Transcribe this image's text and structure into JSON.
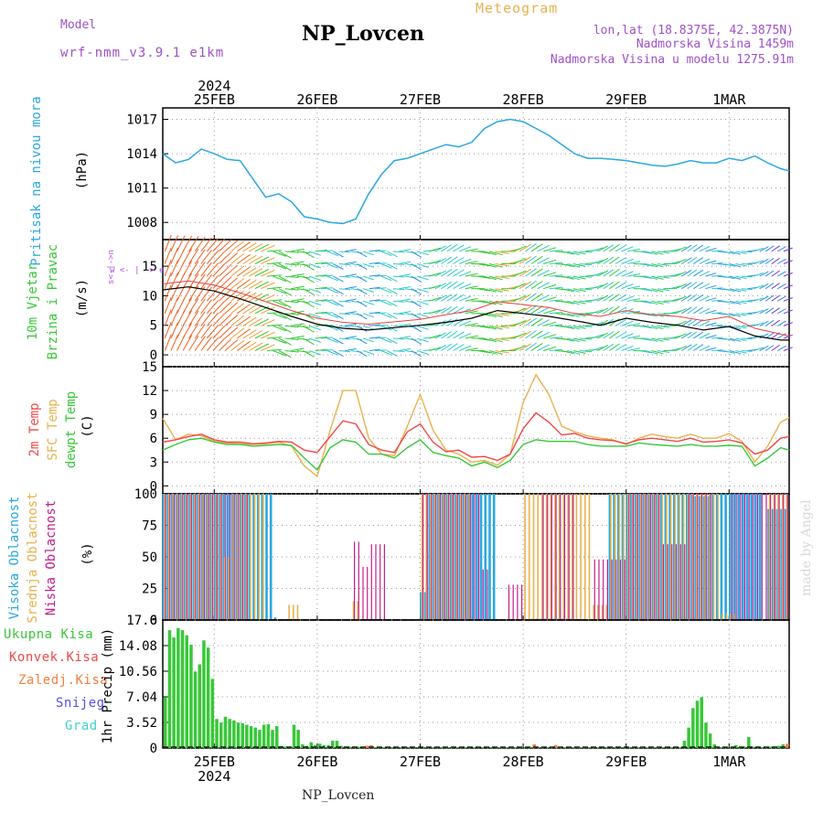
{
  "header": {
    "model_label": "Model",
    "model_name": "wrf-nmm_v3.9.1 e1km",
    "station": "NP_Lovcen",
    "product": "Meteogram",
    "coords": "lon,lat (18.8375E, 42.3875N)",
    "elevation": "Nadmorska Visina 1459m",
    "model_elevation": "Nadmorska Visina u modelu 1275.91m",
    "footer_station": "NP_Lovcen",
    "watermark": "made by Angel"
  },
  "time_axis": {
    "ticks": [
      {
        "label": "25FEB",
        "hour": 12
      },
      {
        "label": "26FEB",
        "hour": 36
      },
      {
        "label": "27FEB",
        "hour": 60
      },
      {
        "label": "28FEB",
        "hour": 84
      },
      {
        "label": "29FEB",
        "hour": 108
      },
      {
        "label": "1MAR",
        "hour": 132
      }
    ],
    "year": "2024",
    "hours_range": [
      0,
      146
    ]
  },
  "colors": {
    "pressure": "#2aa8e0",
    "temp2m": "#f04848",
    "sfc_temp": "#e8b24e",
    "dewpoint": "#38c838",
    "high_cloud": "#2aa8e0",
    "mid_cloud": "#e8b24e",
    "low_cloud": "#c0208c",
    "total_precip": "#38c838",
    "conv_precip": "#f04848",
    "frozen_precip": "#f08040",
    "snow": "#5050e0",
    "hail": "#40d0d0",
    "wind_label": "#38c838",
    "wind_axis_label": "#b050e0"
  },
  "chart_data": [
    {
      "type": "line",
      "panel": "pressure",
      "ylabel_main": "Pritisak na nivou mora",
      "unit": "(hPa)",
      "ylim": [
        1006.5,
        1018
      ],
      "yticks": [
        1008,
        1011,
        1014,
        1017
      ],
      "grid": true,
      "x": [
        0,
        3,
        6,
        9,
        12,
        15,
        18,
        21,
        24,
        27,
        30,
        33,
        36,
        39,
        42,
        45,
        48,
        51,
        54,
        57,
        60,
        63,
        66,
        69,
        72,
        75,
        78,
        81,
        84,
        87,
        90,
        93,
        96,
        99,
        102,
        105,
        108,
        111,
        114,
        117,
        120,
        123,
        126,
        129,
        132,
        135,
        138,
        141,
        144,
        146
      ],
      "series": [
        {
          "name": "Pritisak na nivou mora",
          "values": [
            1014,
            1013.2,
            1013.5,
            1014.4,
            1014,
            1013.5,
            1013.4,
            1011.8,
            1010.2,
            1010.5,
            1009.8,
            1008.5,
            1008.3,
            1008,
            1007.9,
            1008.3,
            1010.5,
            1012.2,
            1013.4,
            1013.6,
            1014,
            1014.4,
            1014.8,
            1014.6,
            1015,
            1016.2,
            1016.8,
            1017,
            1016.8,
            1016.2,
            1015.6,
            1014.8,
            1014,
            1013.6,
            1013.6,
            1013.5,
            1013.4,
            1013.2,
            1013,
            1012.9,
            1013.1,
            1013.4,
            1013.2,
            1013.2,
            1013.6,
            1013.4,
            1013.8,
            1013.2,
            1012.7,
            1012.5
          ]
        }
      ]
    },
    {
      "type": "line",
      "panel": "wind",
      "ylabel_main": "10m Vjetar",
      "ylabel_sub": "Brzina i Pravac",
      "unit": "(m/s)",
      "direction_legend": "w <- | -> e",
      "direction_legend_vertical": "s<-|->n",
      "ylim": [
        -2,
        19.5
      ],
      "yticks": [
        0,
        5,
        10,
        15
      ],
      "grid": true,
      "x": [
        0,
        6,
        12,
        18,
        24,
        30,
        36,
        42,
        48,
        54,
        60,
        66,
        72,
        78,
        84,
        90,
        96,
        102,
        108,
        114,
        120,
        126,
        132,
        138,
        144,
        146
      ],
      "series": [
        {
          "name": "Brzina",
          "values": [
            11,
            11.5,
            10.8,
            9.5,
            8,
            6.5,
            5.2,
            4.5,
            4.2,
            4.6,
            5,
            5.5,
            6.2,
            7.5,
            7,
            6.5,
            5.8,
            5,
            6.2,
            5.5,
            5,
            4.2,
            4.8,
            3.2,
            2.5,
            2.5
          ]
        },
        {
          "name": "Udar",
          "values": [
            12,
            12.5,
            11.8,
            10.5,
            9,
            7.5,
            6.2,
            5.5,
            5.2,
            5.6,
            6,
            6.8,
            7.5,
            9,
            8.5,
            8,
            7,
            6.5,
            7.5,
            6.8,
            6.5,
            5.8,
            6.5,
            4.5,
            3.5,
            3.2
          ]
        }
      ]
    },
    {
      "type": "line",
      "panel": "temperature",
      "ylabel_lines": [
        "2m Temp",
        "SFC Temp",
        "dewpt Temp"
      ],
      "unit": "(C)",
      "ylim": [
        -1,
        15
      ],
      "yticks": [
        0,
        3,
        6,
        9,
        12,
        15
      ],
      "grid": true,
      "x": [
        0,
        3,
        6,
        9,
        12,
        15,
        18,
        21,
        24,
        27,
        30,
        33,
        36,
        39,
        42,
        45,
        48,
        51,
        54,
        57,
        60,
        63,
        66,
        69,
        72,
        75,
        78,
        81,
        84,
        87,
        90,
        93,
        96,
        99,
        102,
        105,
        108,
        111,
        114,
        117,
        120,
        123,
        126,
        129,
        132,
        135,
        138,
        141,
        144,
        146
      ],
      "series": [
        {
          "name": "2m Temp",
          "values": [
            5.5,
            5.8,
            6.2,
            6.5,
            5.8,
            5.5,
            5.5,
            5.3,
            5.4,
            5.6,
            5.5,
            4.5,
            4.2,
            6.2,
            8.2,
            7.8,
            5.2,
            4.5,
            4.2,
            6.8,
            7.8,
            5.5,
            4.3,
            4.5,
            3.6,
            3.7,
            3.2,
            4.0,
            7.2,
            9.2,
            8.0,
            6.4,
            6.6,
            6.0,
            5.8,
            5.7,
            5.3,
            5.8,
            6.0,
            5.8,
            5.6,
            6.0,
            5.5,
            5.6,
            5.8,
            5.4,
            4.0,
            4.5,
            6.0,
            6.2
          ]
        },
        {
          "name": "SFC Temp",
          "values": [
            8.5,
            5.8,
            6.5,
            6.3,
            5.6,
            5.4,
            5.3,
            5.2,
            5.3,
            5.5,
            5.0,
            2.5,
            1.2,
            7.0,
            12.0,
            12.0,
            6.0,
            4.0,
            3.8,
            7.5,
            11.5,
            7.0,
            4.5,
            4.0,
            3.0,
            3.2,
            2.6,
            4.0,
            10.5,
            14.0,
            11.5,
            7.5,
            6.8,
            6.3,
            6.0,
            5.8,
            5.2,
            6.0,
            6.5,
            6.2,
            6.0,
            6.5,
            6.0,
            6.0,
            6.6,
            5.6,
            3.0,
            5.0,
            8.0,
            8.6
          ]
        },
        {
          "name": "dewpt Temp",
          "values": [
            4.5,
            5.2,
            5.8,
            6.0,
            5.5,
            5.2,
            5.2,
            5.0,
            5.1,
            5.2,
            5.1,
            3.5,
            2.0,
            4.8,
            5.8,
            5.5,
            4.0,
            4.0,
            3.5,
            4.8,
            5.8,
            4.2,
            3.8,
            3.5,
            2.5,
            3.0,
            2.3,
            3.2,
            5.2,
            5.8,
            5.6,
            5.6,
            5.6,
            5.2,
            5.0,
            5.0,
            5.0,
            5.4,
            5.2,
            5.1,
            5.0,
            5.2,
            5.0,
            5.0,
            5.1,
            5.0,
            2.5,
            3.5,
            4.8,
            4.5
          ]
        }
      ]
    },
    {
      "type": "bar",
      "panel": "clouds",
      "ylabel_lines": [
        "Visoka Oblacnost",
        "Srednja Oblacnost",
        "Niska Oblacnost"
      ],
      "unit": "(%)",
      "ylim": [
        0,
        100
      ],
      "yticks": [
        0,
        25,
        50,
        75,
        100
      ],
      "grid": true,
      "bar_hour_step": 1,
      "series": [
        {
          "name": "Visoka Oblacnost",
          "segments": [
            [
              0,
              26,
              100
            ],
            [
              26,
              27,
              2
            ],
            [
              60,
              62,
              22
            ],
            [
              62,
              70,
              100
            ],
            [
              70,
              78,
              100
            ],
            [
              86,
              96,
              1
            ],
            [
              104,
              124,
              100
            ],
            [
              124,
              128,
              98
            ],
            [
              128,
              140,
              100
            ],
            [
              141,
              146,
              88
            ]
          ]
        },
        {
          "name": "Srednja Oblacnost",
          "segments": [
            [
              0,
              14,
              100
            ],
            [
              14,
              16,
              50
            ],
            [
              16,
              24,
              100
            ],
            [
              29,
              32,
              12
            ],
            [
              44,
              46,
              15
            ],
            [
              60,
              72,
              100
            ],
            [
              72,
              84,
              0
            ],
            [
              84,
              100,
              100
            ],
            [
              100,
              104,
              12
            ],
            [
              104,
              130,
              100
            ],
            [
              130,
              134,
              5
            ],
            [
              141,
              146,
              100
            ]
          ]
        },
        {
          "name": "Niska Oblacnost",
          "segments": [
            [
              0,
              20,
              100
            ],
            [
              44,
              46,
              62
            ],
            [
              46,
              48,
              42
            ],
            [
              48,
              52,
              60
            ],
            [
              60,
              74,
              100
            ],
            [
              74,
              76,
              40
            ],
            [
              80,
              84,
              28
            ],
            [
              88,
              96,
              100
            ],
            [
              100,
              108,
              48
            ],
            [
              108,
              116,
              100
            ],
            [
              116,
              122,
              60
            ],
            [
              122,
              128,
              100
            ],
            [
              132,
              146,
              100
            ]
          ]
        }
      ]
    },
    {
      "type": "bar",
      "panel": "precip",
      "legend": [
        "Ukupna Kisa",
        "Konvek.Kisa",
        "Zaledj.Kisa",
        "Snijeg",
        "Grad"
      ],
      "unit": "1hr Precip (mm)",
      "ylim": [
        0,
        17.6
      ],
      "yticks": [
        0,
        3.52,
        7.04,
        10.56,
        14.08,
        17.6
      ],
      "grid": true,
      "x_start_hour": 0,
      "x_step_hour": 1,
      "series": [
        {
          "name": "Ukupna Kisa",
          "values": [
            7,
            16.2,
            15.2,
            16.5,
            16.2,
            15.5,
            14.2,
            10.5,
            11.5,
            14.8,
            13.8,
            9.5,
            4,
            3.5,
            4.3,
            4,
            3.8,
            3.5,
            3.4,
            3.2,
            3,
            2.8,
            2.5,
            3.2,
            3.3,
            2.5,
            3,
            0.3,
            0.2,
            0.2,
            3.2,
            2.5,
            0.5,
            0.3,
            0.8,
            0.4,
            0.6,
            0.4,
            0.4,
            1,
            1,
            0.3,
            0.2,
            0.2,
            0.2,
            0.2,
            0.1,
            0.1,
            0.1,
            0.1,
            0.1,
            0.1,
            0.1,
            0.1,
            0.1,
            0.1,
            0.1,
            0.1,
            0.1,
            0.1,
            0.1,
            0.1,
            0.1,
            0.1,
            0.1,
            0.1,
            0.1,
            0.1,
            0.1,
            0.1,
            0.1,
            0.1,
            0.1,
            0.1,
            0.1,
            0.1,
            0.1,
            0.1,
            0.1,
            0.1,
            0.1,
            0.1,
            0.1,
            0.1,
            0.1,
            0.1,
            0.1,
            0.1,
            0.1,
            0.1,
            0.1,
            0.1,
            0.1,
            0.1,
            0.1,
            0.1,
            0.1,
            0.1,
            0.1,
            0.1,
            0.1,
            0.1,
            0.1,
            0.1,
            0.1,
            0.1,
            0.1,
            0.1,
            0.1,
            0.1,
            0.1,
            0.1,
            0.1,
            0.1,
            0.1,
            0.1,
            0.1,
            0.1,
            0.1,
            0.1,
            0.1,
            1,
            2.8,
            5.5,
            6.5,
            7,
            3.5,
            2,
            0.5,
            0.2,
            0.1,
            0.1,
            0.2,
            0.4,
            0.2,
            0.2,
            1.5,
            0.2,
            0.2,
            0.1,
            0.1,
            0.2,
            0.2,
            0.3,
            0.5,
            0.4
          ]
        },
        {
          "name": "Konvek.Kisa",
          "values": [
            0,
            0,
            0,
            0,
            0,
            0,
            0,
            0,
            0,
            0,
            0,
            0,
            0,
            0,
            0,
            0,
            0,
            0,
            0,
            0,
            0,
            0,
            0,
            0,
            0,
            0,
            0,
            0,
            0,
            0,
            0,
            0,
            0,
            0,
            0,
            0,
            0,
            0,
            0,
            0,
            0,
            0,
            0,
            0,
            0,
            0,
            0,
            0.3,
            0.4,
            0,
            0,
            0,
            0,
            0,
            0,
            0,
            0,
            0,
            0,
            0,
            0,
            0,
            0,
            0,
            0,
            0,
            0,
            0,
            0,
            0,
            0,
            0,
            0,
            0,
            0,
            0,
            0,
            0,
            0,
            0,
            0,
            0,
            0,
            0,
            0,
            0,
            0.5,
            0,
            0,
            0,
            0,
            0.4,
            0,
            0,
            0,
            0,
            0,
            0,
            0,
            0,
            0,
            0,
            0,
            0,
            0,
            0,
            0,
            0,
            0,
            0,
            0,
            0,
            0,
            0,
            0,
            0,
            0,
            0,
            0,
            0,
            0,
            0,
            0,
            0,
            0,
            0,
            0,
            0,
            0,
            0,
            0,
            0,
            0,
            0,
            0,
            0,
            0,
            0,
            0,
            0,
            0,
            0,
            0,
            0,
            0,
            0.6
          ]
        }
      ]
    }
  ]
}
